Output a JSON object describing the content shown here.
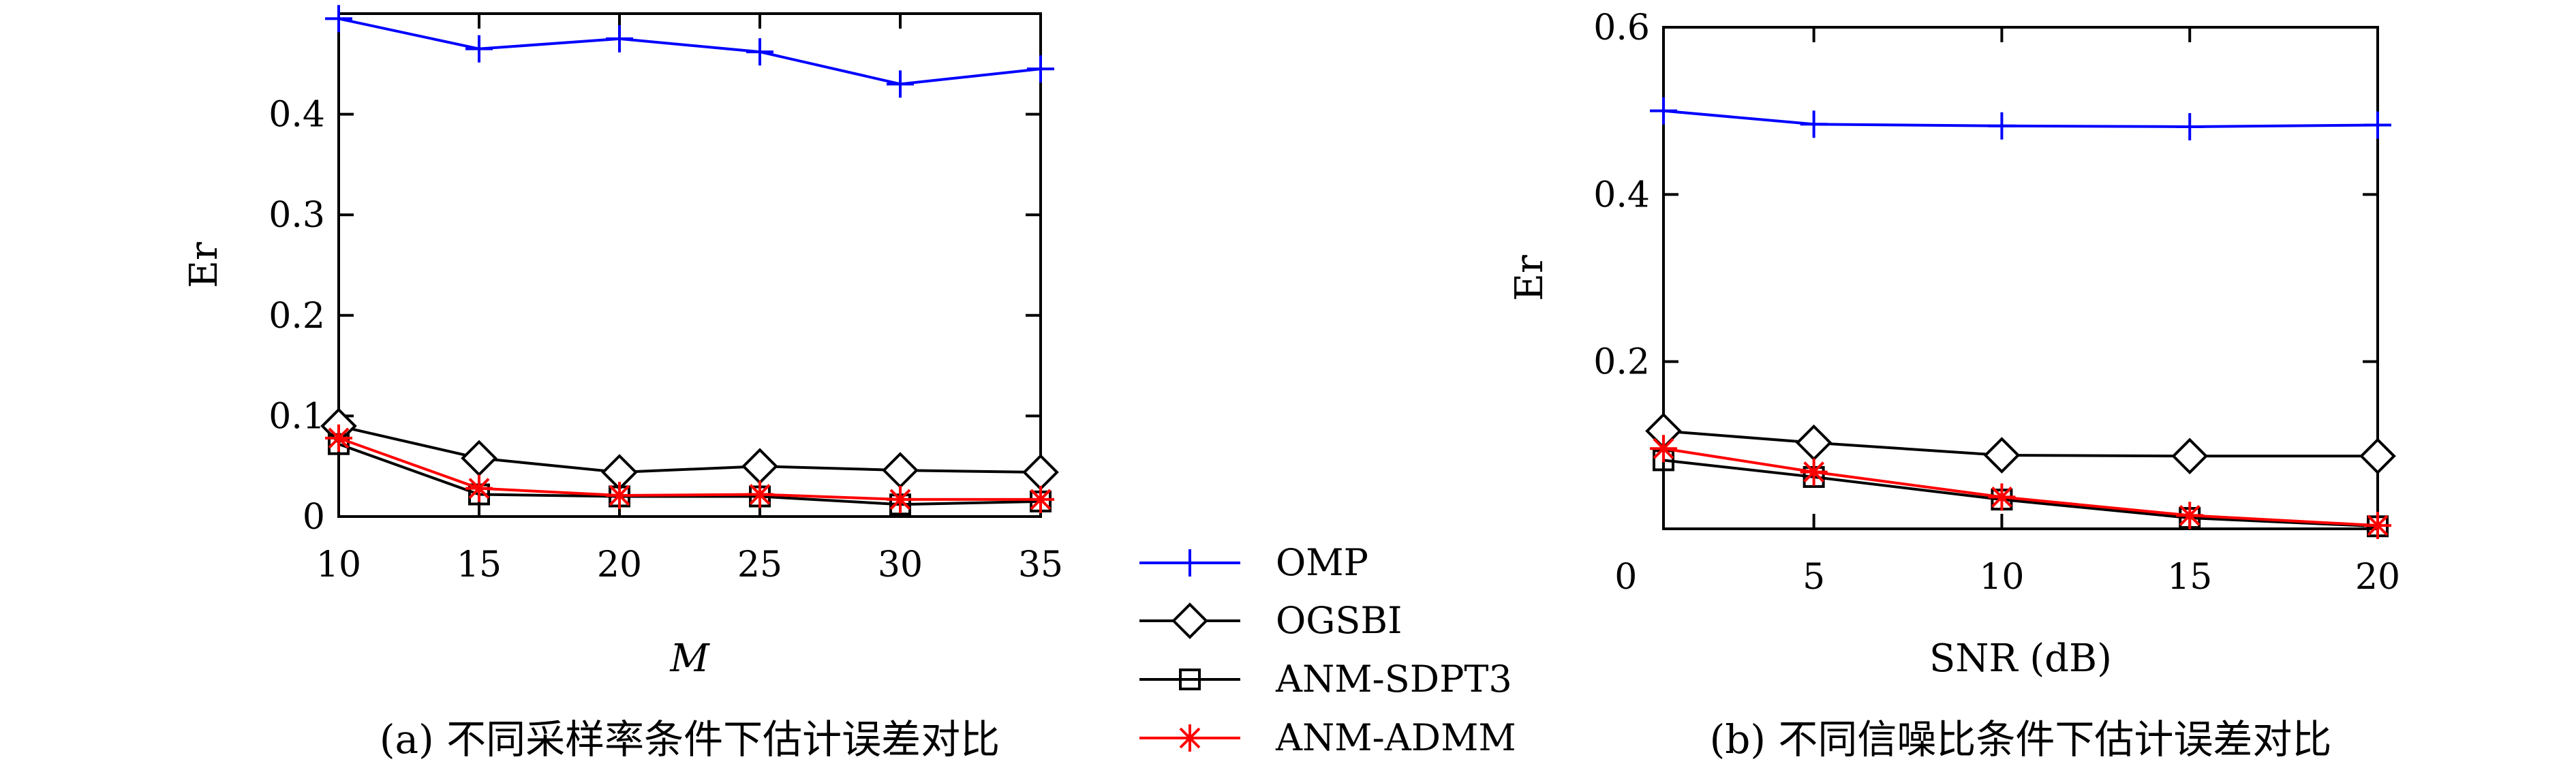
{
  "chart_data": [
    {
      "type": "line",
      "caption": "(a) 不同采样率条件下估计误差对比",
      "xlabel": "M",
      "ylabel": "Er",
      "x": [
        10,
        15,
        20,
        25,
        30,
        35
      ],
      "xlim": [
        10,
        35
      ],
      "ylim": [
        0,
        0.5
      ],
      "xticks": [
        "10",
        "15",
        "20",
        "25",
        "30",
        "35"
      ],
      "yticks": [
        "0",
        "0.1",
        "0.2",
        "0.3",
        "0.4"
      ],
      "yticks_values": [
        0,
        0.1,
        0.2,
        0.3,
        0.4
      ],
      "grid": false,
      "series": [
        {
          "name": "OMP",
          "values": [
            0.495,
            0.465,
            0.475,
            0.462,
            0.43,
            0.445
          ]
        },
        {
          "name": "OGSBI",
          "values": [
            0.09,
            0.058,
            0.044,
            0.05,
            0.046,
            0.044
          ]
        },
        {
          "name": "ANM-SDPT3",
          "values": [
            0.072,
            0.022,
            0.02,
            0.02,
            0.012,
            0.015
          ]
        },
        {
          "name": "ANM-ADMM",
          "values": [
            0.078,
            0.028,
            0.021,
            0.022,
            0.017,
            0.017
          ]
        }
      ]
    },
    {
      "type": "line",
      "caption": "(b) 不同信噪比条件下估计误差对比",
      "xlabel": "SNR (dB)",
      "ylabel": "Er",
      "x": [
        1,
        5,
        10,
        15,
        20
      ],
      "xlim": [
        1,
        20
      ],
      "ylim": [
        0,
        0.6
      ],
      "xticks": [
        "0",
        "5",
        "10",
        "15",
        "20"
      ],
      "xticks_values": [
        0,
        5,
        10,
        15,
        20
      ],
      "yticks": [
        "0.2",
        "0.4",
        "0.6"
      ],
      "yticks_values": [
        0.2,
        0.4,
        0.6
      ],
      "grid": false,
      "series": [
        {
          "name": "OMP",
          "values": [
            0.5,
            0.484,
            0.482,
            0.481,
            0.483
          ]
        },
        {
          "name": "OGSBI",
          "values": [
            0.117,
            0.103,
            0.088,
            0.087,
            0.087
          ]
        },
        {
          "name": "ANM-SDPT3",
          "values": [
            0.082,
            0.062,
            0.035,
            0.013,
            0.003
          ]
        },
        {
          "name": "ANM-ADMM",
          "values": [
            0.096,
            0.068,
            0.038,
            0.016,
            0.004
          ]
        }
      ]
    }
  ],
  "legend": {
    "placement": "center",
    "entries": [
      {
        "name": "OMP",
        "color": "#0000ff",
        "marker": "plus"
      },
      {
        "name": "OGSBI",
        "color": "#000000",
        "marker": "diamond"
      },
      {
        "name": "ANM-SDPT3",
        "color": "#000000",
        "marker": "square"
      },
      {
        "name": "ANM-ADMM",
        "color": "#ff0000",
        "marker": "asterisk"
      }
    ]
  }
}
